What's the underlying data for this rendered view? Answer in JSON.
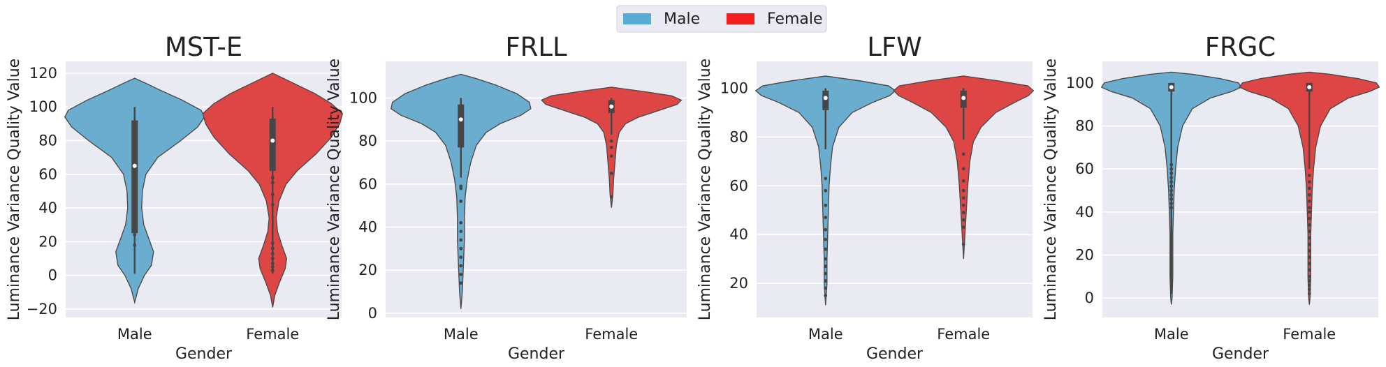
{
  "legend": {
    "entries": [
      {
        "label": "Male",
        "color": "#5AABD3"
      },
      {
        "label": "Female",
        "color": "#F71E1E"
      }
    ]
  },
  "colors": {
    "male": "#6AADCF",
    "female": "#DE4545",
    "background": "#EAEAF2",
    "outline": "#4C4C4C",
    "box": "#464646"
  },
  "chart_data": [
    {
      "type": "violin",
      "title": "MST-E",
      "xlabel": "Gender",
      "ylabel": "Luminance Variance Quality Value",
      "categories": [
        "Male",
        "Female"
      ],
      "ylim": [
        -25,
        127
      ],
      "yticks": [
        -20,
        0,
        20,
        40,
        60,
        80,
        100,
        120
      ],
      "grid": true,
      "violins": [
        {
          "category": "Male",
          "extent": [
            -16,
            117
          ],
          "quartiles": [
            25,
            65,
            92
          ],
          "whisker": [
            1,
            100
          ],
          "density": [
            [
              -16,
              0
            ],
            [
              -8,
              0.05
            ],
            [
              0,
              0.14
            ],
            [
              6,
              0.24
            ],
            [
              14,
              0.27
            ],
            [
              22,
              0.2
            ],
            [
              30,
              0.13
            ],
            [
              40,
              0.1
            ],
            [
              50,
              0.11
            ],
            [
              60,
              0.16
            ],
            [
              70,
              0.33
            ],
            [
              80,
              0.66
            ],
            [
              88,
              0.9
            ],
            [
              94,
              1
            ],
            [
              98,
              0.95
            ],
            [
              104,
              0.68
            ],
            [
              110,
              0.36
            ],
            [
              114,
              0.16
            ],
            [
              117,
              0
            ]
          ],
          "outliers": [
            48,
            44,
            42,
            40,
            38,
            36,
            34,
            32,
            28,
            24,
            18
          ]
        },
        {
          "category": "Female",
          "extent": [
            -19,
            120
          ],
          "quartiles": [
            62,
            80,
            93
          ],
          "whisker": [
            1,
            100
          ],
          "density": [
            [
              -19,
              0
            ],
            [
              -12,
              0.03
            ],
            [
              -4,
              0.1
            ],
            [
              4,
              0.18
            ],
            [
              10,
              0.2
            ],
            [
              18,
              0.13
            ],
            [
              26,
              0.07
            ],
            [
              34,
              0.05
            ],
            [
              44,
              0.09
            ],
            [
              54,
              0.19
            ],
            [
              62,
              0.35
            ],
            [
              72,
              0.62
            ],
            [
              82,
              0.84
            ],
            [
              90,
              0.96
            ],
            [
              96,
              1
            ],
            [
              102,
              0.84
            ],
            [
              108,
              0.6
            ],
            [
              114,
              0.3
            ],
            [
              118,
              0.1
            ],
            [
              120,
              0
            ]
          ],
          "outliers": [
            58,
            55,
            48,
            42,
            19,
            16,
            13,
            10,
            7,
            5,
            3
          ]
        }
      ]
    },
    {
      "type": "violin",
      "title": "FRLL",
      "xlabel": "Gender",
      "ylabel": "Luminance Variance Quality Value",
      "categories": [
        "Male",
        "Female"
      ],
      "ylim": [
        -2,
        117
      ],
      "yticks": [
        0,
        20,
        40,
        60,
        80,
        100
      ],
      "grid": true,
      "violins": [
        {
          "category": "Male",
          "extent": [
            2,
            111
          ],
          "quartiles": [
            77,
            90,
            97
          ],
          "whisker": [
            63,
            100
          ],
          "density": [
            [
              2,
              0
            ],
            [
              10,
              0.02
            ],
            [
              18,
              0.03
            ],
            [
              26,
              0.04
            ],
            [
              34,
              0.05
            ],
            [
              44,
              0.05
            ],
            [
              54,
              0.06
            ],
            [
              62,
              0.09
            ],
            [
              70,
              0.14
            ],
            [
              78,
              0.22
            ],
            [
              84,
              0.36
            ],
            [
              88,
              0.56
            ],
            [
              92,
              0.86
            ],
            [
              95,
              1
            ],
            [
              98,
              0.98
            ],
            [
              102,
              0.8
            ],
            [
              106,
              0.5
            ],
            [
              109,
              0.22
            ],
            [
              111,
              0
            ]
          ],
          "outliers": [
            59,
            58,
            52,
            42,
            38,
            34,
            30,
            26,
            22,
            18,
            14
          ]
        },
        {
          "category": "Female",
          "extent": [
            49,
            105
          ],
          "quartiles": [
            93,
            96,
            99
          ],
          "whisker": [
            83,
            100
          ],
          "density": [
            [
              49,
              0
            ],
            [
              55,
              0.02
            ],
            [
              62,
              0.03
            ],
            [
              70,
              0.05
            ],
            [
              78,
              0.07
            ],
            [
              84,
              0.11
            ],
            [
              88,
              0.2
            ],
            [
              91,
              0.38
            ],
            [
              94,
              0.66
            ],
            [
              97,
              0.94
            ],
            [
              99,
              1
            ],
            [
              101,
              0.86
            ],
            [
              103,
              0.46
            ],
            [
              105,
              0
            ]
          ],
          "outliers": [
            80,
            77,
            73,
            65,
            54
          ]
        }
      ]
    },
    {
      "type": "violin",
      "title": "LFW",
      "xlabel": "Gender",
      "ylabel": "Luminance Variance Quality Value",
      "categories": [
        "Male",
        "Female"
      ],
      "ylim": [
        6,
        111
      ],
      "yticks": [
        20,
        40,
        60,
        80,
        100
      ],
      "grid": true,
      "violins": [
        {
          "category": "Male",
          "extent": [
            11,
            105
          ],
          "quartiles": [
            91,
            96,
            99
          ],
          "whisker": [
            75,
            100
          ],
          "density": [
            [
              11,
              0
            ],
            [
              20,
              0.02
            ],
            [
              30,
              0.02
            ],
            [
              40,
              0.03
            ],
            [
              50,
              0.04
            ],
            [
              60,
              0.05
            ],
            [
              68,
              0.07
            ],
            [
              76,
              0.1
            ],
            [
              84,
              0.19
            ],
            [
              90,
              0.38
            ],
            [
              94,
              0.66
            ],
            [
              97,
              0.92
            ],
            [
              99,
              1
            ],
            [
              101,
              0.9
            ],
            [
              103,
              0.5
            ],
            [
              105,
              0
            ]
          ],
          "outliers": [
            63,
            58,
            52,
            47,
            42,
            38,
            34,
            30,
            27,
            24,
            21,
            18,
            15
          ]
        },
        {
          "category": "Female",
          "extent": [
            30,
            105
          ],
          "quartiles": [
            92,
            96,
            99
          ],
          "whisker": [
            79,
            100
          ],
          "density": [
            [
              30,
              0
            ],
            [
              40,
              0.02
            ],
            [
              50,
              0.04
            ],
            [
              60,
              0.06
            ],
            [
              70,
              0.09
            ],
            [
              78,
              0.14
            ],
            [
              84,
              0.25
            ],
            [
              90,
              0.46
            ],
            [
              94,
              0.72
            ],
            [
              97,
              0.93
            ],
            [
              99,
              1
            ],
            [
              101,
              0.92
            ],
            [
              103,
              0.5
            ],
            [
              105,
              0
            ]
          ],
          "outliers": [
            73,
            67,
            62,
            58,
            55,
            52,
            49,
            46,
            43,
            36
          ]
        }
      ]
    },
    {
      "type": "violin",
      "title": "FRGC",
      "xlabel": "Gender",
      "ylabel": "Luminance Variance Quality Value",
      "categories": [
        "Male",
        "Female"
      ],
      "ylim": [
        -9,
        110
      ],
      "yticks": [
        0,
        20,
        40,
        60,
        80,
        100
      ],
      "grid": true,
      "violins": [
        {
          "category": "Male",
          "extent": [
            -3,
            105
          ],
          "quartiles": [
            96,
            98,
            100
          ],
          "whisker": [
            2,
            100
          ],
          "density": [
            [
              -3,
              0
            ],
            [
              0,
              0.01
            ],
            [
              10,
              0.02
            ],
            [
              20,
              0.02
            ],
            [
              30,
              0.02
            ],
            [
              40,
              0.03
            ],
            [
              50,
              0.04
            ],
            [
              60,
              0.06
            ],
            [
              70,
              0.09
            ],
            [
              80,
              0.16
            ],
            [
              88,
              0.3
            ],
            [
              93,
              0.56
            ],
            [
              96,
              0.86
            ],
            [
              98,
              1
            ],
            [
              100,
              0.96
            ],
            [
              102,
              0.7
            ],
            [
              104,
              0.3
            ],
            [
              105,
              0
            ]
          ],
          "outliers": [
            62,
            60,
            58,
            56,
            54,
            52,
            50,
            48,
            46,
            44,
            42
          ]
        },
        {
          "category": "Female",
          "extent": [
            -3,
            105
          ],
          "quartiles": [
            96,
            98,
            100
          ],
          "whisker": [
            60,
            100
          ],
          "density": [
            [
              -3,
              0
            ],
            [
              0,
              0.01
            ],
            [
              10,
              0.02
            ],
            [
              20,
              0.02
            ],
            [
              30,
              0.02
            ],
            [
              40,
              0.03
            ],
            [
              50,
              0.04
            ],
            [
              60,
              0.06
            ],
            [
              70,
              0.09
            ],
            [
              80,
              0.16
            ],
            [
              88,
              0.3
            ],
            [
              93,
              0.56
            ],
            [
              96,
              0.86
            ],
            [
              98,
              1
            ],
            [
              100,
              0.96
            ],
            [
              102,
              0.7
            ],
            [
              104,
              0.3
            ],
            [
              105,
              0
            ]
          ],
          "outliers": [
            57,
            54,
            51,
            48,
            45,
            42,
            40,
            37,
            34,
            31,
            28,
            25,
            22,
            19,
            16,
            13,
            10,
            8,
            6,
            4,
            2
          ]
        }
      ]
    }
  ]
}
